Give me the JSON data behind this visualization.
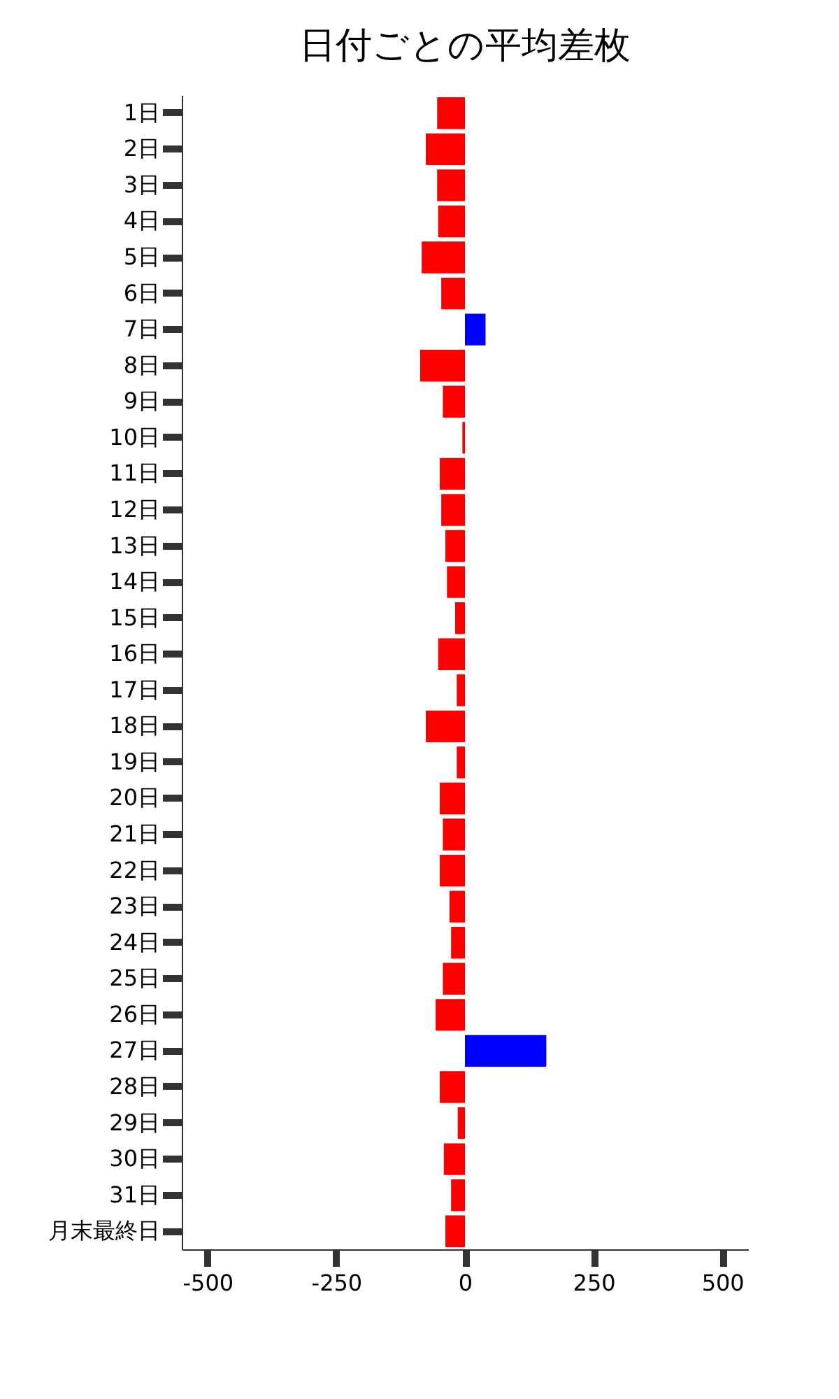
{
  "chart_data": {
    "type": "bar",
    "orientation": "horizontal",
    "title": "日付ごとの平均差枚",
    "categories": [
      "1日",
      "2日",
      "3日",
      "4日",
      "5日",
      "6日",
      "7日",
      "8日",
      "9日",
      "10日",
      "11日",
      "12日",
      "13日",
      "14日",
      "15日",
      "16日",
      "17日",
      "18日",
      "19日",
      "20日",
      "21日",
      "22日",
      "23日",
      "24日",
      "25日",
      "26日",
      "27日",
      "28日",
      "29日",
      "30日",
      "31日",
      "月末最終日"
    ],
    "values": [
      -54,
      -76,
      -54,
      -52,
      -84,
      -46,
      40,
      -87,
      -43,
      -5,
      -49,
      -46,
      -38,
      -35,
      -19,
      -52,
      -16,
      -76,
      -16,
      -49,
      -43,
      -49,
      -30,
      -27,
      -43,
      -57,
      158,
      -49,
      -14,
      -41,
      -27,
      -38
    ],
    "colors": [
      "#ff0000",
      "#ff0000",
      "#ff0000",
      "#ff0000",
      "#ff0000",
      "#ff0000",
      "#0000ff",
      "#ff0000",
      "#ff0000",
      "#ff0000",
      "#ff0000",
      "#ff0000",
      "#ff0000",
      "#ff0000",
      "#ff0000",
      "#ff0000",
      "#ff0000",
      "#ff0000",
      "#ff0000",
      "#ff0000",
      "#ff0000",
      "#ff0000",
      "#ff0000",
      "#ff0000",
      "#ff0000",
      "#ff0000",
      "#0000ff",
      "#ff0000",
      "#ff0000",
      "#ff0000",
      "#ff0000",
      "#ff0000"
    ],
    "xlim": [
      -550,
      550
    ],
    "xticks": [
      -500,
      -250,
      0,
      250,
      500
    ],
    "grid": false
  }
}
